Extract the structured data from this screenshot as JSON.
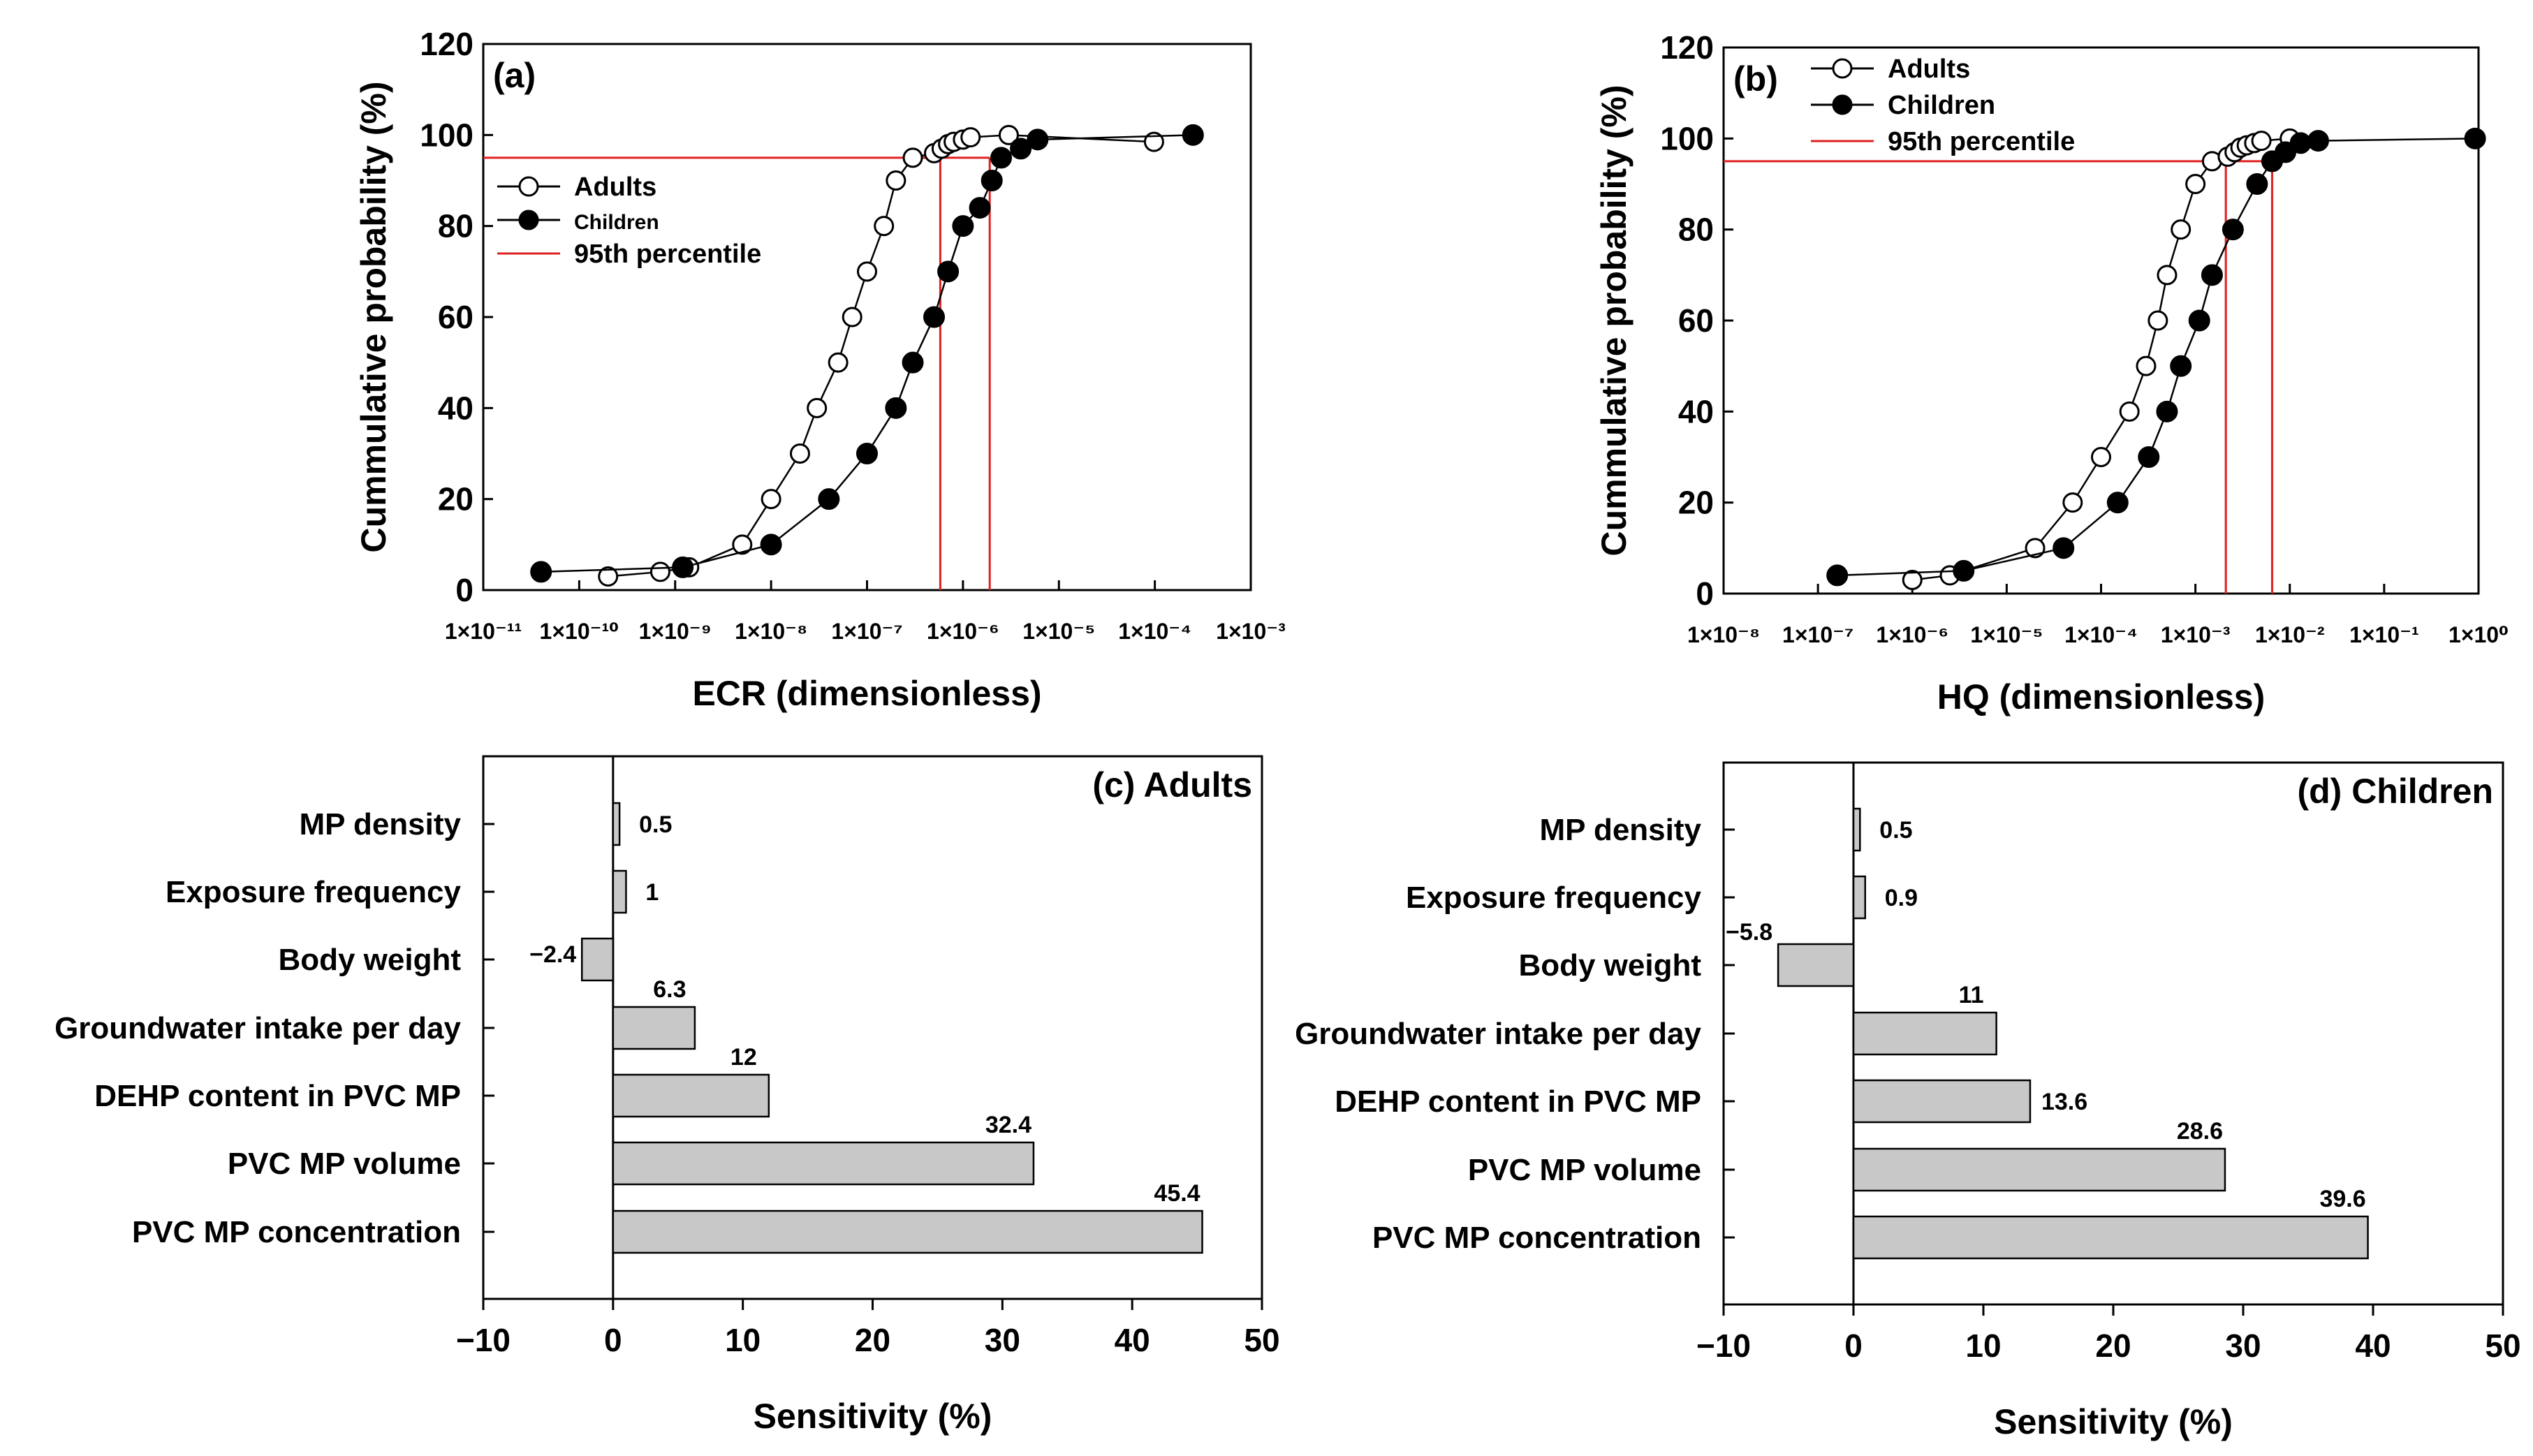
{
  "chart_data": [
    {
      "id": "a",
      "type": "line",
      "scale_x": "log",
      "panel_label": "(a)",
      "xlabel": "ECR (dimensionless)",
      "ylabel": "Cummulative probability (%)",
      "x_exp_range": [
        -11,
        -3
      ],
      "y_ticks": [
        "0",
        "20",
        "40",
        "60",
        "80",
        "100",
        "120"
      ],
      "ylim": [
        0,
        120
      ],
      "legend": {
        "position": "upper-left",
        "entries": [
          "Adults",
          "Children",
          "95th percentile"
        ]
      },
      "series": [
        {
          "name": "Adults",
          "marker": "open-circle",
          "x": [
            2e-10,
            7e-10,
            1.4e-09,
            5e-09,
            1e-08,
            2e-08,
            3e-08,
            5e-08,
            7e-08,
            1e-07,
            1.5e-07,
            2e-07,
            3e-07,
            5e-07,
            6e-07,
            7e-07,
            8e-07,
            1e-06,
            1.2e-06,
            3e-06,
            9.8e-05
          ],
          "y": [
            3,
            4,
            5,
            10,
            20,
            30,
            40,
            50,
            60,
            70,
            80,
            90,
            95,
            96,
            97,
            98,
            98.5,
            99,
            99.5,
            100,
            98.5
          ]
        },
        {
          "name": "Children",
          "marker": "filled-circle",
          "x": [
            4e-11,
            1.2e-09,
            1e-08,
            4e-08,
            1e-07,
            2e-07,
            3e-07,
            5e-07,
            7e-07,
            1e-06,
            1.5e-06,
            2e-06,
            2.5e-06,
            4e-06,
            6e-06,
            0.00025
          ],
          "y": [
            4,
            5,
            10,
            20,
            30,
            40,
            50,
            60,
            70,
            80,
            84,
            90,
            95,
            97,
            99,
            100
          ]
        }
      ],
      "percentile_95": {
        "y": 95,
        "Adults_x": 5.8e-07,
        "Children_x": 1.9e-06
      }
    },
    {
      "id": "b",
      "type": "line",
      "scale_x": "log",
      "panel_label": "(b)",
      "xlabel": "HQ (dimensionless)",
      "ylabel": "Cummulative probability (%)",
      "x_exp_range": [
        -8,
        0
      ],
      "y_ticks": [
        "0",
        "20",
        "40",
        "60",
        "80",
        "100",
        "120"
      ],
      "ylim": [
        0,
        120
      ],
      "legend": {
        "position": "upper-left",
        "entries": [
          "Adults",
          "Children",
          "95th percentile"
        ]
      },
      "series": [
        {
          "name": "Adults",
          "marker": "open-circle",
          "x": [
            1e-06,
            2.5e-06,
            3.5e-06,
            2e-05,
            5e-05,
            0.0001,
            0.0002,
            0.0003,
            0.0004,
            0.0005,
            0.0007,
            0.001,
            0.0015,
            0.0022,
            0.0026,
            0.003,
            0.0035,
            0.0042,
            0.005,
            0.01
          ],
          "y": [
            3,
            4,
            5,
            10,
            20,
            30,
            40,
            50,
            60,
            70,
            80,
            90,
            95,
            96,
            97,
            98,
            98.5,
            99,
            99.5,
            100
          ]
        },
        {
          "name": "Children",
          "marker": "filled-circle",
          "x": [
            1.6e-07,
            3.5e-06,
            4e-05,
            0.00015,
            0.00032,
            0.0005,
            0.0007,
            0.0011,
            0.0015,
            0.0025,
            0.0045,
            0.0065,
            0.009,
            0.013,
            0.02,
            0.92
          ],
          "y": [
            4,
            5,
            10,
            20,
            30,
            40,
            50,
            60,
            70,
            80,
            90,
            95,
            97,
            99,
            99.5,
            100
          ]
        }
      ],
      "percentile_95": {
        "y": 95,
        "Adults_x": 0.0021,
        "Children_x": 0.0065
      }
    },
    {
      "id": "c",
      "type": "bar",
      "orientation": "horizontal",
      "panel_label": "(c) Adults",
      "xlabel": "Sensitivity (%)",
      "xlim": [
        -10,
        50
      ],
      "x_ticks": [
        "−10",
        "0",
        "10",
        "20",
        "30",
        "40",
        "50"
      ],
      "categories": [
        "MP density",
        "Exposure frequency",
        "Body weight",
        "Groundwater intake per day",
        "DEHP content in PVC MP",
        "PVC MP volume",
        "PVC MP concentration"
      ],
      "values": [
        0.5,
        1,
        -2.4,
        6.3,
        12,
        32.4,
        45.4
      ],
      "value_labels": [
        "0.5",
        "1",
        "−2.4",
        "6.3",
        "12",
        "32.4",
        "45.4"
      ]
    },
    {
      "id": "d",
      "type": "bar",
      "orientation": "horizontal",
      "panel_label": "(d) Children",
      "xlabel": "Sensitivity (%)",
      "xlim": [
        -10,
        50
      ],
      "x_ticks": [
        "−10",
        "0",
        "10",
        "20",
        "30",
        "40",
        "50"
      ],
      "categories": [
        "MP density",
        "Exposure frequency",
        "Body weight",
        "Groundwater intake per day",
        "DEHP content in PVC MP",
        "PVC MP volume",
        "PVC MP concentration"
      ],
      "values": [
        0.5,
        0.9,
        -5.8,
        11,
        13.6,
        28.6,
        39.6
      ],
      "value_labels": [
        "0.5",
        "0.9",
        "−5.8",
        "11",
        "13.6",
        "28.6",
        "39.6"
      ]
    }
  ],
  "colors": {
    "percentile_line": "#e02020",
    "bar_fill": "#c8c8c8",
    "axis": "#000000"
  }
}
